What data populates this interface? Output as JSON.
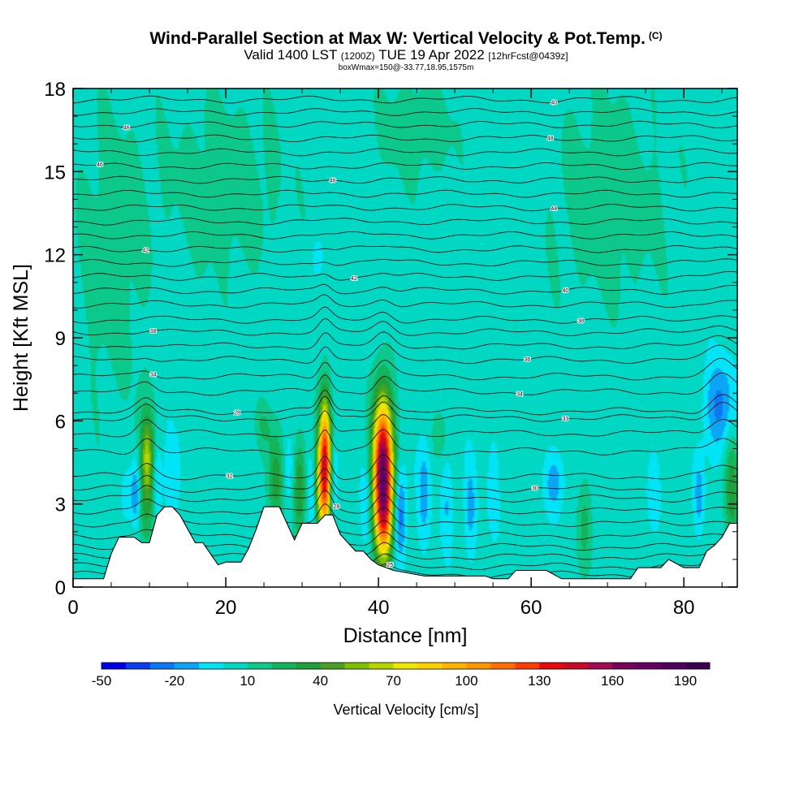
{
  "title": {
    "main": "Wind-Parallel Section at Max W: Vertical Velocity & Pot.Temp.",
    "main_suffix": "(C)",
    "line2_a": "Valid 1400 LST",
    "line2_b": "(1200Z)",
    "line2_c": "TUE 19 Apr 2022",
    "line2_d": "[12hrFcst@0439z]",
    "line3": "boxWmax=150@-33.77,18.95,1575m"
  },
  "chart_data": {
    "type": "heatmap",
    "xlabel": "Distance [nm]",
    "ylabel": "Height [Kft MSL]",
    "xlim": [
      0,
      87
    ],
    "ylim": [
      0,
      18
    ],
    "x_ticks": [
      0,
      20,
      40,
      60,
      80
    ],
    "y_ticks": [
      0,
      3,
      6,
      9,
      12,
      15,
      18
    ],
    "background_w_cms": 5,
    "terrain": [
      [
        0,
        0.3
      ],
      [
        4,
        0.3
      ],
      [
        5,
        1.2
      ],
      [
        6,
        1.8
      ],
      [
        8,
        1.8
      ],
      [
        9,
        1.6
      ],
      [
        10,
        1.6
      ],
      [
        11,
        2.6
      ],
      [
        12,
        2.9
      ],
      [
        13,
        2.9
      ],
      [
        14,
        2.6
      ],
      [
        15,
        2.1
      ],
      [
        16,
        1.6
      ],
      [
        17,
        1.6
      ],
      [
        18,
        1.2
      ],
      [
        19,
        0.8
      ],
      [
        20,
        0.9
      ],
      [
        22,
        0.9
      ],
      [
        23,
        1.4
      ],
      [
        24,
        2.1
      ],
      [
        25,
        2.9
      ],
      [
        27,
        2.9
      ],
      [
        28,
        2.3
      ],
      [
        29,
        1.7
      ],
      [
        30,
        2.3
      ],
      [
        32,
        2.3
      ],
      [
        33,
        2.6
      ],
      [
        34,
        2.6
      ],
      [
        35,
        1.9
      ],
      [
        37,
        1.3
      ],
      [
        38,
        1.3
      ],
      [
        39,
        1.0
      ],
      [
        40,
        0.8
      ],
      [
        42,
        0.6
      ],
      [
        46,
        0.4
      ],
      [
        54,
        0.4
      ],
      [
        55,
        0.3
      ],
      [
        57,
        0.3
      ],
      [
        58,
        0.6
      ],
      [
        62,
        0.6
      ],
      [
        64,
        0.3
      ],
      [
        73,
        0.3
      ],
      [
        74,
        0.7
      ],
      [
        77,
        0.7
      ],
      [
        78,
        1.0
      ],
      [
        80,
        0.7
      ],
      [
        82,
        0.7
      ],
      [
        83,
        1.3
      ],
      [
        84,
        1.5
      ],
      [
        85,
        1.8
      ],
      [
        86,
        2.3
      ],
      [
        87,
        2.3
      ]
    ],
    "w_features": [
      {
        "x": 9.5,
        "z": 3.8,
        "sx": 0.9,
        "sz": 1.6,
        "w": 40
      },
      {
        "x": 9.7,
        "z": 4.9,
        "sx": 0.5,
        "sz": 0.9,
        "w": 25
      },
      {
        "x": 8.3,
        "z": 3.4,
        "sx": 0.5,
        "sz": 1.0,
        "w": -35
      },
      {
        "x": 7.0,
        "z": 3.3,
        "sx": 0.5,
        "sz": 0.7,
        "w": -15
      },
      {
        "x": 11.0,
        "z": 3.8,
        "sx": 0.4,
        "sz": 1.0,
        "w": -25
      },
      {
        "x": 13.0,
        "z": 4.0,
        "sx": 0.8,
        "sz": 1.2,
        "w": -15
      },
      {
        "x": 26.6,
        "z": 3.9,
        "sx": 0.7,
        "sz": 1.3,
        "w": 30
      },
      {
        "x": 29.7,
        "z": 3.6,
        "sx": 0.6,
        "sz": 1.2,
        "w": 35
      },
      {
        "x": 28.3,
        "z": 4.1,
        "sx": 0.5,
        "sz": 1.0,
        "w": -15
      },
      {
        "x": 31.3,
        "z": 3.5,
        "sx": 0.5,
        "sz": 1.0,
        "w": -15
      },
      {
        "x": 33.0,
        "z": 4.3,
        "sx": 0.55,
        "sz": 1.7,
        "w": 140
      },
      {
        "x": 32.1,
        "z": 3.7,
        "sx": 0.4,
        "sz": 1.2,
        "w": 35
      },
      {
        "x": 34.1,
        "z": 4.0,
        "sx": 0.4,
        "sz": 1.0,
        "w": -20
      },
      {
        "x": 40.6,
        "z": 4.2,
        "sx": 0.9,
        "sz": 1.8,
        "w": 170
      },
      {
        "x": 40.8,
        "z": 2.2,
        "sx": 0.8,
        "sz": 1.0,
        "w": 40
      },
      {
        "x": 42.8,
        "z": 2.6,
        "sx": 0.6,
        "sz": 1.2,
        "w": -35
      },
      {
        "x": 38.4,
        "z": 3.0,
        "sx": 0.5,
        "sz": 1.1,
        "w": -15
      },
      {
        "x": 46.0,
        "z": 3.5,
        "sx": 0.6,
        "sz": 1.4,
        "w": -20
      },
      {
        "x": 49.0,
        "z": 3.0,
        "sx": 0.6,
        "sz": 1.2,
        "w": -15
      },
      {
        "x": 52.0,
        "z": 2.8,
        "sx": 0.6,
        "sz": 1.3,
        "w": -18
      },
      {
        "x": 55.0,
        "z": 3.6,
        "sx": 0.6,
        "sz": 1.3,
        "w": -12
      },
      {
        "x": 63.0,
        "z": 3.8,
        "sx": 1.0,
        "sz": 0.8,
        "w": -20
      },
      {
        "x": 67.0,
        "z": 2.2,
        "sx": 0.6,
        "sz": 1.2,
        "w": 20
      },
      {
        "x": 76.0,
        "z": 3.5,
        "sx": 0.6,
        "sz": 1.2,
        "w": -12
      },
      {
        "x": 82.0,
        "z": 3.3,
        "sx": 0.5,
        "sz": 1.0,
        "w": -20
      },
      {
        "x": 84.7,
        "z": 6.5,
        "sx": 1.4,
        "sz": 1.2,
        "w": -28
      },
      {
        "x": 86.3,
        "z": 3.6,
        "sx": 0.7,
        "sz": 1.5,
        "w": 30
      },
      {
        "x": 32.0,
        "z": 11.9,
        "sx": 0.6,
        "sz": 0.5,
        "w": -12
      },
      {
        "x": 25.0,
        "z": 5.8,
        "sx": 0.7,
        "sz": 0.6,
        "w": 15
      },
      {
        "x": 48.0,
        "z": 5.5,
        "sx": 0.6,
        "sz": 0.6,
        "w": 15
      },
      {
        "x": 20.0,
        "z": 14.5,
        "sx": 6.0,
        "sz": 2.5,
        "w": 10
      },
      {
        "x": 70.0,
        "z": 14.0,
        "sx": 6.0,
        "sz": 3.0,
        "w": 10
      },
      {
        "x": 5.0,
        "z": 12.0,
        "sx": 3.5,
        "sz": 4.0,
        "w": 10
      },
      {
        "x": 45.0,
        "z": 16.5,
        "sx": 4.0,
        "sz": 1.5,
        "w": 10
      }
    ],
    "theta_contours": [
      {
        "base": 0.45,
        "label": "25",
        "label_x": 41.5
      },
      {
        "base": 0.75
      },
      {
        "base": 1.1
      },
      {
        "base": 1.45
      },
      {
        "base": 1.85
      },
      {
        "base": 2.3
      },
      {
        "base": 2.75,
        "label": "28",
        "label_x": 34.5
      },
      {
        "base": 3.2
      },
      {
        "base": 3.55,
        "label": "30",
        "label_x": 60.5
      },
      {
        "base": 4.0,
        "label": "32",
        "label_x": 20.5
      },
      {
        "base": 4.9
      },
      {
        "base": 5.55
      },
      {
        "base": 6.1,
        "label": "33",
        "label_x": 64.5
      },
      {
        "base": 6.35,
        "label": "28",
        "label_x": 21.5
      },
      {
        "base": 7.05,
        "label": "34",
        "label_x": 58.5
      },
      {
        "base": 7.6,
        "label": "34",
        "label_x": 10.5
      },
      {
        "base": 8.2,
        "label": "36",
        "label_x": 59.5
      },
      {
        "base": 8.7
      },
      {
        "base": 9.2,
        "label": "38",
        "label_x": 10.5
      },
      {
        "base": 9.65,
        "label": "38",
        "label_x": 66.5
      },
      {
        "base": 10.2
      },
      {
        "base": 10.7,
        "label": "40",
        "label_x": 64.5
      },
      {
        "base": 11.2,
        "label": "42",
        "label_x": 36.8
      },
      {
        "base": 11.7
      },
      {
        "base": 12.2,
        "label": "42",
        "label_x": 9.5
      },
      {
        "base": 12.7
      },
      {
        "base": 13.2
      },
      {
        "base": 13.7,
        "label": "44",
        "label_x": 63.0
      },
      {
        "base": 14.2
      },
      {
        "base": 14.7,
        "label": "46",
        "label_x": 34.0
      },
      {
        "base": 15.2,
        "label": "46",
        "label_x": 3.5
      },
      {
        "base": 15.7
      },
      {
        "base": 16.2,
        "label": "48",
        "label_x": 62.5
      },
      {
        "base": 16.7,
        "label": "46",
        "label_x": 7.0
      },
      {
        "base": 17.15
      },
      {
        "base": 17.6,
        "label": "40",
        "label_x": 63.0
      }
    ],
    "colorbar": {
      "label": "Vertical Velocity [cm/s]",
      "tick_labels": [
        "-50",
        "-20",
        "10",
        "40",
        "70",
        "100",
        "130",
        "160",
        "190"
      ],
      "tick_values": [
        -50,
        -20,
        10,
        40,
        70,
        100,
        130,
        160,
        190
      ],
      "min": -50,
      "max": 200,
      "colors": [
        "#0000e8",
        "#0a3cf0",
        "#0a78f5",
        "#0aa5f5",
        "#00e4f5",
        "#00d8c4",
        "#0cc88a",
        "#14b45a",
        "#20a03a",
        "#4aa020",
        "#7cc000",
        "#b8d400",
        "#f0e600",
        "#ffd000",
        "#ffb400",
        "#ff9600",
        "#ff6e00",
        "#ff3c00",
        "#e60a0a",
        "#c80a28",
        "#a00a50",
        "#78005a",
        "#640064",
        "#500060",
        "#3c0050"
      ]
    }
  }
}
